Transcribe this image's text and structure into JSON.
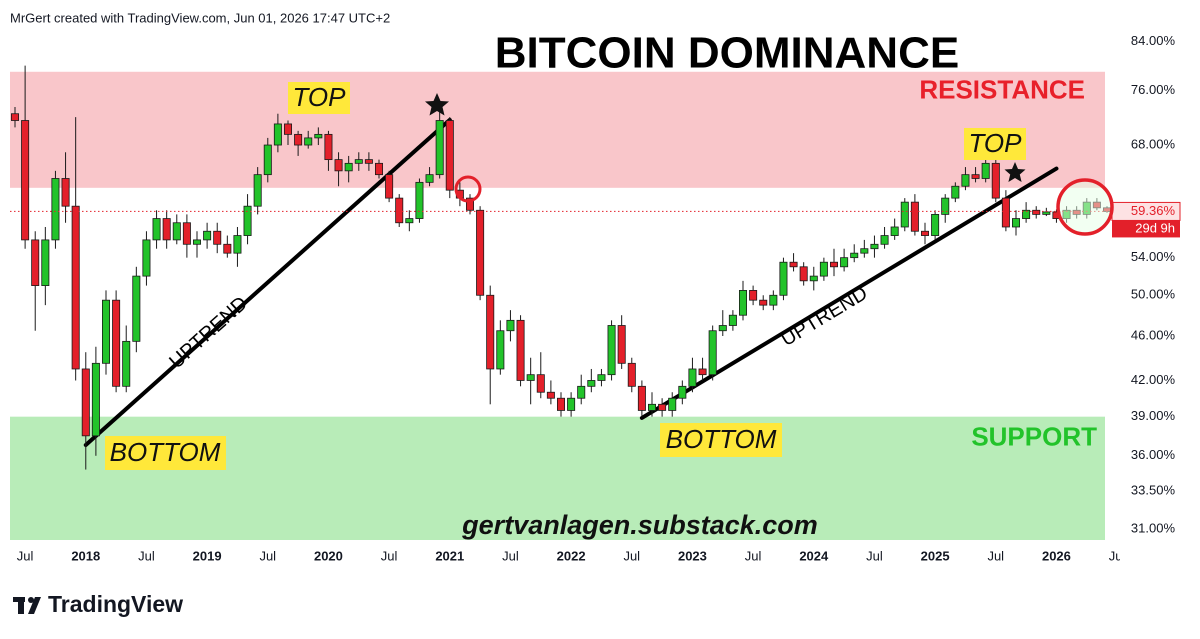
{
  "header": {
    "credit": "MrGert created with TradingView.com, Jun 01, 2026 17:47 UTC+2"
  },
  "footer": {
    "brand": "TradingView"
  },
  "chart_data": {
    "type": "candlestick",
    "title": "BITCOIN DOMINANCE",
    "watermark": "gertvanlagen.substack.com",
    "log_scale": true,
    "grid": false,
    "up_color": "#22c32a",
    "down_color": "#e3202a",
    "x": [
      "2017-06",
      "2017-07",
      "2017-08",
      "2017-09",
      "2017-10",
      "2017-11",
      "2017-12",
      "2018-01",
      "2018-02",
      "2018-03",
      "2018-04",
      "2018-05",
      "2018-06",
      "2018-07",
      "2018-08",
      "2018-09",
      "2018-10",
      "2018-11",
      "2018-12",
      "2019-01",
      "2019-02",
      "2019-03",
      "2019-04",
      "2019-05",
      "2019-06",
      "2019-07",
      "2019-08",
      "2019-09",
      "2019-10",
      "2019-11",
      "2019-12",
      "2020-01",
      "2020-02",
      "2020-03",
      "2020-04",
      "2020-05",
      "2020-06",
      "2020-07",
      "2020-08",
      "2020-09",
      "2020-10",
      "2020-11",
      "2020-12",
      "2021-01",
      "2021-02",
      "2021-03",
      "2021-04",
      "2021-05",
      "2021-06",
      "2021-07",
      "2021-08",
      "2021-09",
      "2021-10",
      "2021-11",
      "2021-12",
      "2022-01",
      "2022-02",
      "2022-03",
      "2022-04",
      "2022-05",
      "2022-06",
      "2022-07",
      "2022-08",
      "2022-09",
      "2022-10",
      "2022-11",
      "2022-12",
      "2023-01",
      "2023-02",
      "2023-03",
      "2023-04",
      "2023-05",
      "2023-06",
      "2023-07",
      "2023-08",
      "2023-09",
      "2023-10",
      "2023-11",
      "2023-12",
      "2024-01",
      "2024-02",
      "2024-03",
      "2024-04",
      "2024-05",
      "2024-06",
      "2024-07",
      "2024-08",
      "2024-09",
      "2024-10",
      "2024-11",
      "2024-12",
      "2025-01",
      "2025-02",
      "2025-03",
      "2025-04",
      "2025-05",
      "2025-06",
      "2025-07",
      "2025-08",
      "2025-09",
      "2025-10",
      "2025-11",
      "2025-12",
      "2026-01",
      "2026-02",
      "2026-03",
      "2026-04",
      "2026-05",
      "2026-06"
    ],
    "open": [
      72.5,
      71.5,
      56,
      51,
      56,
      63.5,
      60,
      43,
      37.5,
      43.5,
      49.5,
      41.5,
      45.5,
      52,
      56,
      58.5,
      56,
      58,
      55.5,
      56,
      57,
      55.5,
      54.5,
      56.5,
      60,
      64,
      68,
      71,
      69.5,
      68,
      69,
      69.5,
      66,
      64.5,
      65.5,
      66,
      65.5,
      64,
      61,
      58,
      58.5,
      63,
      64,
      71.5,
      62,
      61,
      59.5,
      50,
      43,
      46.5,
      47.5,
      42,
      42.5,
      41,
      40.5,
      39.5,
      40.5,
      41.5,
      42,
      42.5,
      47,
      43.5,
      41.5,
      39.5,
      40,
      39.5,
      40.5,
      41.5,
      43,
      42.5,
      46.5,
      47,
      48,
      50.5,
      49.5,
      49,
      50,
      53.5,
      53,
      51.5,
      52,
      53.5,
      53,
      54,
      54.5,
      55,
      55.5,
      56.5,
      57.5,
      60.5,
      57,
      56.5,
      59,
      61,
      62.5,
      64,
      63.5,
      65.5,
      61,
      57.5,
      58.5,
      59.5,
      59,
      59.3,
      58.5,
      59.5,
      59,
      60.5,
      59.8
    ],
    "high": [
      73.5,
      80,
      57,
      57.5,
      64.5,
      67,
      72,
      44.5,
      45,
      50.5,
      50.5,
      47,
      53,
      57,
      59.5,
      59.5,
      59,
      59,
      57,
      58,
      58,
      56.5,
      57.5,
      61.5,
      65,
      69,
      72.5,
      71.5,
      70,
      70,
      70.5,
      70,
      67,
      66.5,
      67,
      67,
      66,
      64.5,
      61.5,
      59.5,
      63.5,
      65,
      73,
      72,
      63,
      61.5,
      60,
      51,
      47.5,
      48.5,
      48,
      44,
      44.5,
      42,
      41,
      41,
      42.5,
      43,
      43,
      47.5,
      48,
      44,
      42,
      41,
      40.5,
      41,
      42,
      44,
      44,
      47,
      48.5,
      48.5,
      51.5,
      51,
      50,
      50.5,
      54,
      54.5,
      53.5,
      53,
      54,
      55,
      55,
      55.5,
      56,
      56.5,
      57.5,
      58.5,
      61,
      61.5,
      58,
      59.5,
      61.5,
      63,
      65,
      65,
      66,
      66,
      62,
      59.5,
      60.5,
      60,
      59.8,
      59.6,
      60,
      60,
      61,
      61,
      60
    ],
    "low": [
      70.5,
      55,
      46.5,
      49,
      55,
      58,
      42,
      35,
      36,
      42.5,
      41,
      41,
      44.5,
      51,
      55,
      55,
      55.5,
      54,
      54,
      55,
      54.5,
      54,
      53,
      55.5,
      59,
      63,
      67,
      68,
      66.5,
      67.5,
      68,
      64.5,
      62.5,
      63,
      64.5,
      64.5,
      63.5,
      60.5,
      57.5,
      57,
      58,
      62.5,
      63.5,
      61,
      60,
      59,
      49.5,
      40,
      42.5,
      45.5,
      41.5,
      40,
      40.5,
      40,
      39,
      39,
      40,
      41,
      41.5,
      42,
      43,
      41,
      39,
      39,
      39,
      39,
      40,
      41,
      42,
      42,
      46,
      46.5,
      47.5,
      49,
      48.5,
      48.5,
      49.5,
      52.5,
      51,
      50.5,
      51.5,
      52,
      52.5,
      53.5,
      54,
      54,
      55,
      56,
      57,
      56.5,
      55.5,
      56,
      58,
      60.5,
      62,
      63,
      63,
      60.5,
      57,
      56.5,
      58,
      58.5,
      58.8,
      58,
      58,
      58.5,
      58.5,
      59.5,
      59.2
    ],
    "close": [
      71.5,
      56,
      51,
      56,
      63.5,
      60,
      43,
      37.5,
      43.5,
      49.5,
      41.5,
      45.5,
      52,
      56,
      58.5,
      56,
      58,
      55.5,
      56,
      57,
      55.5,
      54.5,
      56.5,
      60,
      64,
      68,
      71,
      69.5,
      68,
      69,
      69.5,
      66,
      64.5,
      65.5,
      66,
      65.5,
      64,
      61,
      58,
      58.5,
      63,
      64,
      71.5,
      62,
      61,
      59.5,
      50,
      43,
      46.5,
      47.5,
      42,
      42.5,
      41,
      40.5,
      39.5,
      40.5,
      41.5,
      42,
      42.5,
      47,
      43.5,
      41.5,
      39.5,
      40,
      39.5,
      40.5,
      41.5,
      43,
      42.5,
      46.5,
      47,
      48,
      50.5,
      49.5,
      49,
      50,
      53.5,
      53,
      51.5,
      52,
      53.5,
      53,
      54,
      54.5,
      55,
      55.5,
      56.5,
      57.5,
      60.5,
      57,
      56.5,
      59,
      61,
      62.5,
      64,
      63.5,
      65.5,
      61,
      57.5,
      58.5,
      59.5,
      59,
      59.3,
      58.5,
      59.5,
      59,
      60.5,
      59.8,
      59.36
    ],
    "price_label": {
      "value_label": "59.36%",
      "countdown": "29d 9h"
    },
    "ylim": [
      30.3,
      91.5
    ],
    "yticks": [
      {
        "value": 84,
        "label": "84.00%"
      },
      {
        "value": 76,
        "label": "76.00%"
      },
      {
        "value": 68,
        "label": "68.00%"
      },
      {
        "value": 54,
        "label": "54.00%"
      },
      {
        "value": 50,
        "label": "50.00%"
      },
      {
        "value": 46,
        "label": "46.00%"
      },
      {
        "value": 42,
        "label": "42.00%"
      },
      {
        "value": 39,
        "label": "39.00%"
      },
      {
        "value": 36,
        "label": "36.00%"
      },
      {
        "value": 33.5,
        "label": "33.50%"
      },
      {
        "value": 31,
        "label": "31.00%"
      }
    ],
    "xticks": [
      {
        "value": "2017-07",
        "label": "Jul"
      },
      {
        "value": "2018-01",
        "label": "2018"
      },
      {
        "value": "2018-07",
        "label": "Jul"
      },
      {
        "value": "2019-01",
        "label": "2019"
      },
      {
        "value": "2019-07",
        "label": "Jul"
      },
      {
        "value": "2020-01",
        "label": "2020"
      },
      {
        "value": "2020-07",
        "label": "Jul"
      },
      {
        "value": "2021-01",
        "label": "2021"
      },
      {
        "value": "2021-07",
        "label": "Jul"
      },
      {
        "value": "2022-01",
        "label": "2022"
      },
      {
        "value": "2022-07",
        "label": "Jul"
      },
      {
        "value": "2023-01",
        "label": "2023"
      },
      {
        "value": "2023-07",
        "label": "Jul"
      },
      {
        "value": "2024-01",
        "label": "2024"
      },
      {
        "value": "2024-07",
        "label": "Jul"
      },
      {
        "value": "2025-01",
        "label": "2025"
      },
      {
        "value": "2025-07",
        "label": "Jul"
      },
      {
        "value": "2026-01",
        "label": "2026"
      },
      {
        "value": "2026-07",
        "label": "Jul"
      }
    ],
    "zones": [
      {
        "label": "RESISTANCE",
        "from": 62.3,
        "to": 79,
        "color": "#f9c6ca",
        "label_color": "#e8202a"
      },
      {
        "label": "SUPPORT",
        "from": 30.3,
        "to": 39,
        "color": "#b8ecb8",
        "label_color": "#22c32a"
      }
    ],
    "trendlines": [
      {
        "label": "UPTREND",
        "from": {
          "x": "2018-01",
          "y": 36.8
        },
        "to": {
          "x": "2021-01",
          "y": 71.6
        }
      },
      {
        "label": "UPTREND",
        "from": {
          "x": "2022-08",
          "y": 38.9
        },
        "to": {
          "x": "2026-01",
          "y": 64.8
        }
      }
    ],
    "annotations": [
      "TOP",
      "TOP",
      "BOTTOM",
      "BOTTOM"
    ]
  }
}
